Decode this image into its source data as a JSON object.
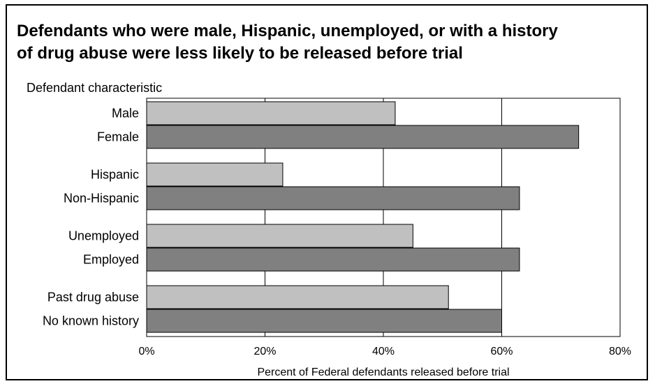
{
  "chart_data": {
    "type": "bar",
    "orientation": "horizontal",
    "title_lines": [
      "Defendants who were male, Hispanic, unemployed, or with a history",
      "of drug abuse were less likely to be released before trial"
    ],
    "ylabel": "Defendant characteristic",
    "xlabel": "Percent of Federal defendants released before trial",
    "xlim": [
      0,
      80
    ],
    "xticks": [
      0,
      20,
      40,
      60,
      80
    ],
    "xtick_labels": [
      "0%",
      "20%",
      "40%",
      "60%",
      "80%"
    ],
    "grid": true,
    "categories": [
      "Male",
      "Female",
      "Hispanic",
      "Non-Hispanic",
      "Unemployed",
      "Employed",
      "Past drug abuse",
      "No known history"
    ],
    "values": [
      42,
      73,
      23,
      63,
      45,
      63,
      51,
      60
    ],
    "groups": [
      [
        "Male",
        "Female"
      ],
      [
        "Hispanic",
        "Non-Hispanic"
      ],
      [
        "Unemployed",
        "Employed"
      ],
      [
        "Past drug abuse",
        "No known history"
      ]
    ],
    "colors": {
      "first_in_pair": "#c0c0c0",
      "second_in_pair": "#808080",
      "edge": "#000000"
    }
  }
}
